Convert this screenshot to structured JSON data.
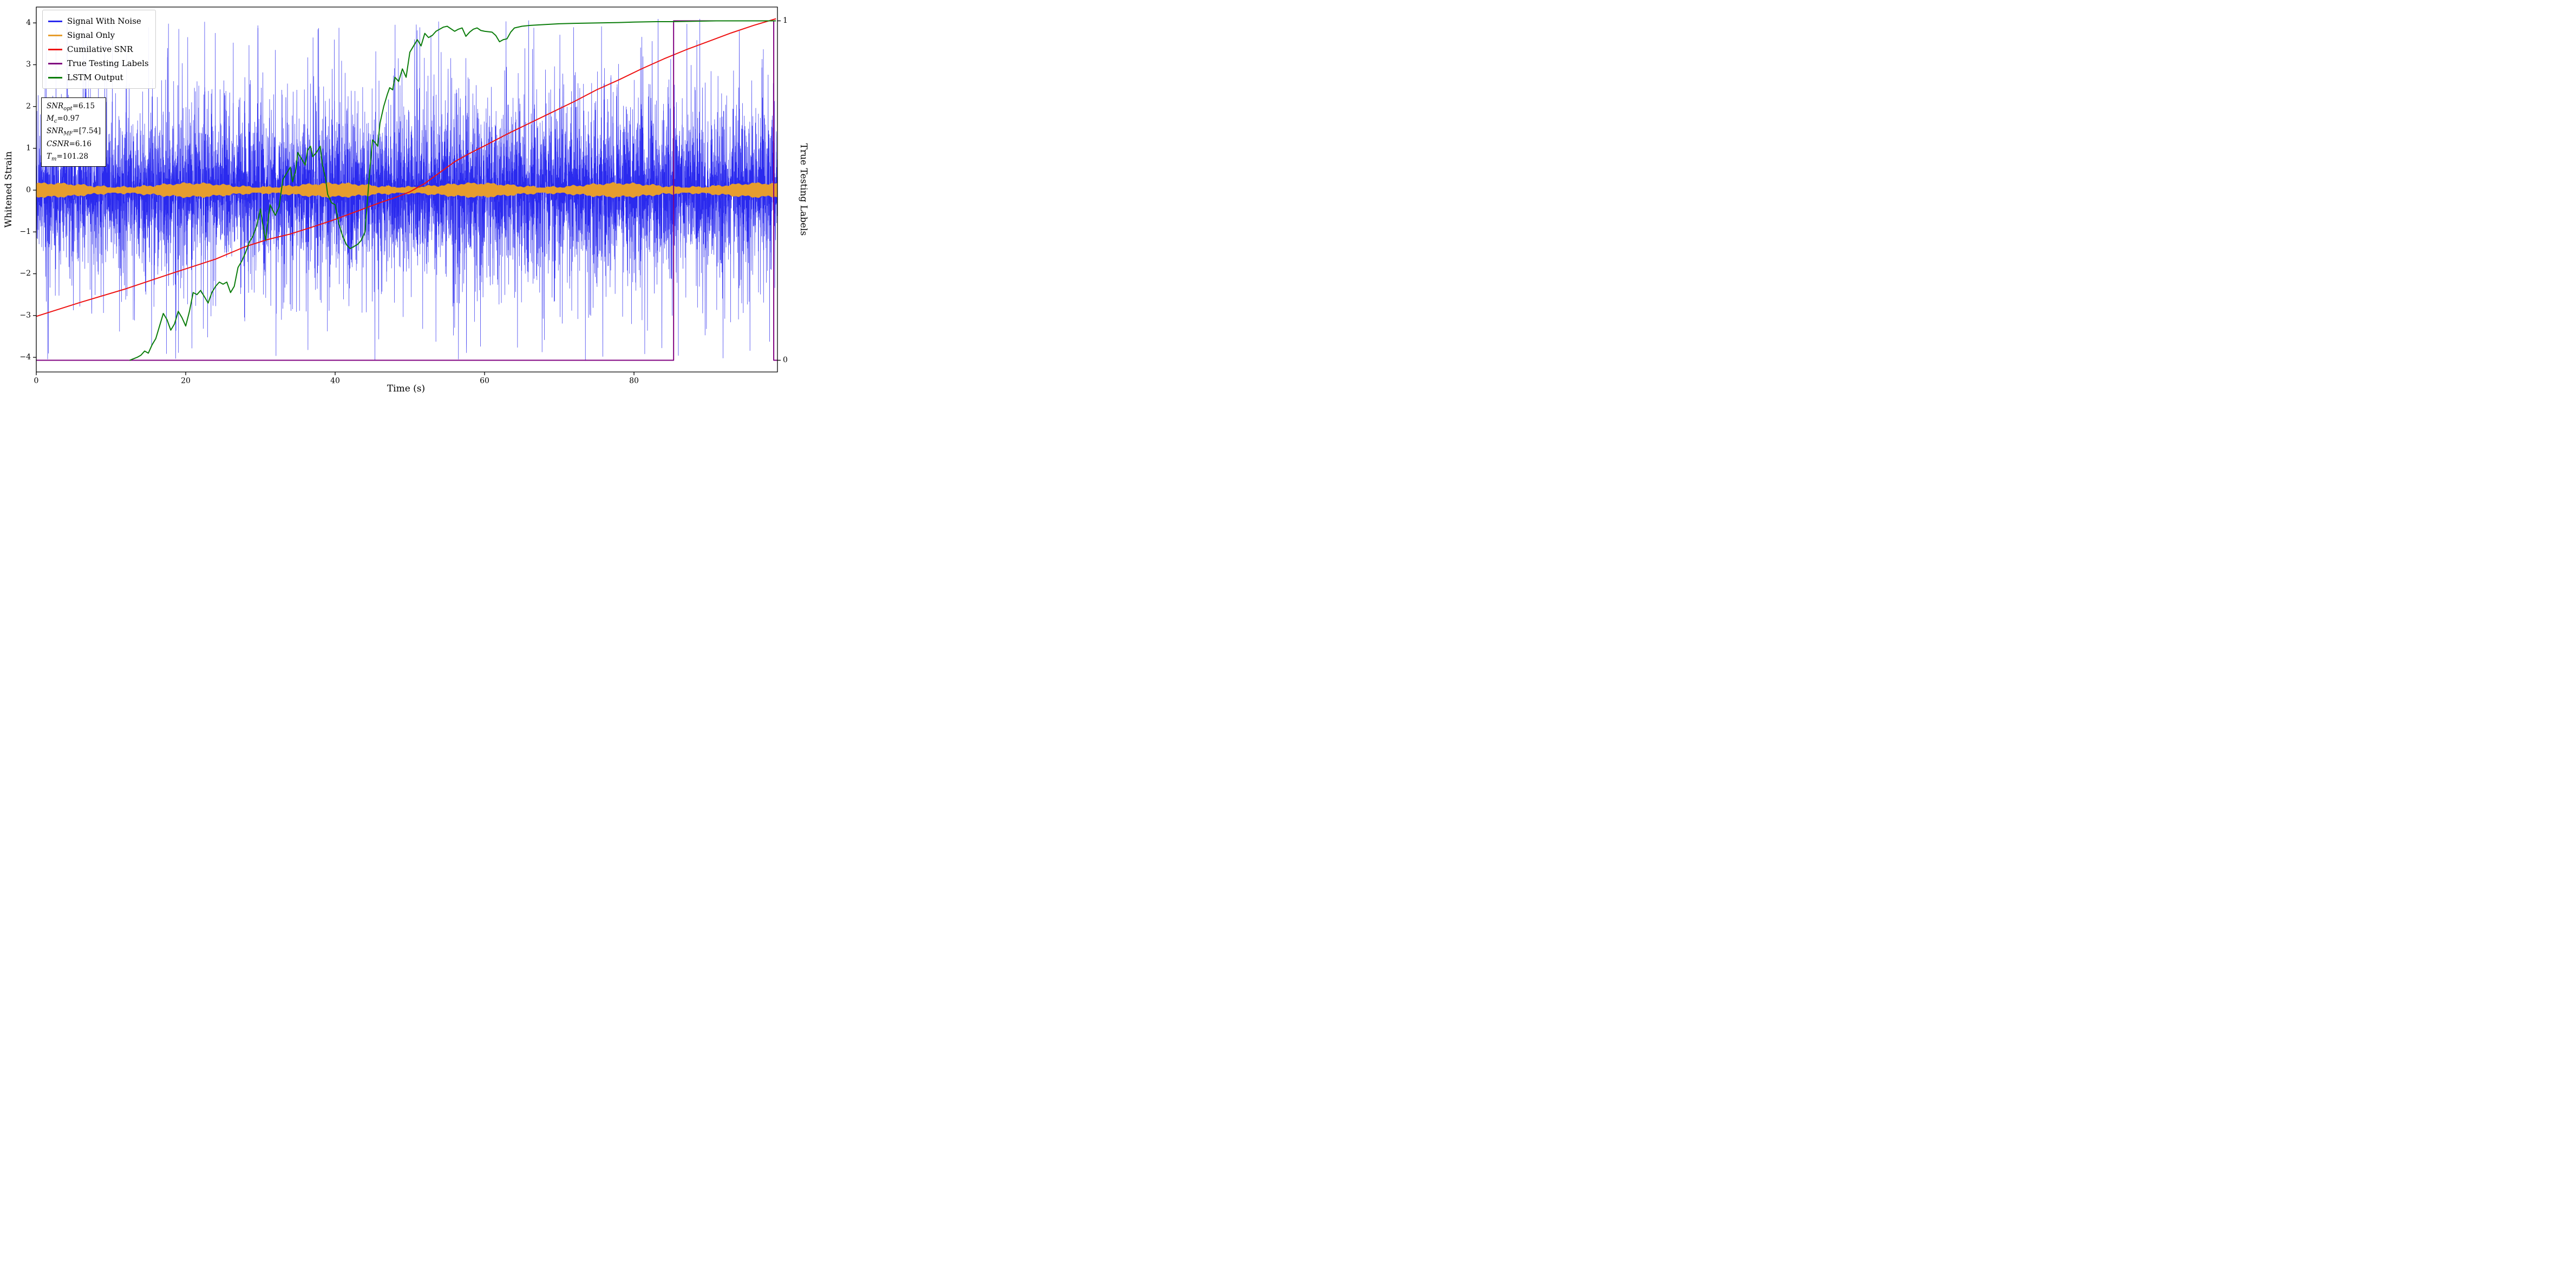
{
  "figure": {
    "background": "#ffffff",
    "xlabel": "Time (s)",
    "ylabel_left": "Whitened Strain",
    "ylabel_right": "True Testing Labels"
  },
  "legend": {
    "position": "upper left",
    "items": [
      {
        "label": "Signal With Noise",
        "color": "#2a2aee"
      },
      {
        "label": "Signal Only",
        "color": "#e69d2e"
      },
      {
        "label": "Cumilative SNR",
        "color": "#ee1111"
      },
      {
        "label": "True Testing Labels",
        "color": "#800080"
      },
      {
        "label": "LSTM Output",
        "color": "#0b7d0b"
      }
    ]
  },
  "annotation": {
    "lines": [
      {
        "main": "SNR",
        "sub": "opt",
        "rest": "=6.15"
      },
      {
        "main": "M",
        "sub": "c",
        "rest": "=0.97"
      },
      {
        "main": "SNR",
        "sub": "MF",
        "rest": "=[7.54]"
      },
      {
        "main": "CSNR",
        "sub": "",
        "rest": "=6.16"
      },
      {
        "main": "T",
        "sub": "m",
        "rest": "=101.28"
      }
    ]
  },
  "chart_data": {
    "type": "line",
    "title": "",
    "xlabel": "Time (s)",
    "ylabel": "Whitened Strain",
    "ylabel_right": "True Testing Labels",
    "xlim": [
      0,
      99.2
    ],
    "ylim": [
      -4.35,
      4.38
    ],
    "x_ticks": [
      0,
      20,
      40,
      60,
      80
    ],
    "y_ticks": [
      -4,
      -3,
      -2,
      -1,
      0,
      1,
      2,
      3,
      4
    ],
    "right_ticks": [
      {
        "y": -4.07,
        "label": "0"
      },
      {
        "y": 4.05,
        "label": "1"
      }
    ],
    "grid": false,
    "legend_position": "upper left",
    "series": [
      {
        "name": "Signal With Noise",
        "type": "noise",
        "color": "#2a2aee",
        "x_range": [
          0,
          99.2
        ],
        "n_points": 9000,
        "scale": 0.72,
        "clip": 4.12,
        "seed": 1337,
        "description": "whitened detector noise, dense band ±2 with spikes to ±4"
      },
      {
        "name": "Signal Only",
        "type": "band",
        "color": "#e69d2e",
        "x_range": [
          0,
          99.2
        ],
        "amplitude": 0.115,
        "wobble": 0.045,
        "description": "clean chirp signal, amplitude ≈ ±0.13 around zero"
      },
      {
        "name": "Cumilative SNR",
        "type": "line",
        "color": "#ee1111",
        "points": [
          [
            0,
            -3.02
          ],
          [
            6,
            -2.68
          ],
          [
            12,
            -2.36
          ],
          [
            18,
            -2.0
          ],
          [
            24,
            -1.65
          ],
          [
            28,
            -1.35
          ],
          [
            31,
            -1.18
          ],
          [
            34,
            -1.05
          ],
          [
            37,
            -0.88
          ],
          [
            40,
            -0.7
          ],
          [
            43,
            -0.5
          ],
          [
            46,
            -0.3
          ],
          [
            48,
            -0.18
          ],
          [
            50,
            -0.04
          ],
          [
            52,
            0.16
          ],
          [
            54,
            0.42
          ],
          [
            56,
            0.68
          ],
          [
            58,
            0.88
          ],
          [
            60,
            1.06
          ],
          [
            63,
            1.34
          ],
          [
            66,
            1.6
          ],
          [
            69,
            1.86
          ],
          [
            72,
            2.12
          ],
          [
            75,
            2.4
          ],
          [
            78,
            2.64
          ],
          [
            81,
            2.9
          ],
          [
            84,
            3.14
          ],
          [
            87,
            3.36
          ],
          [
            90,
            3.56
          ],
          [
            93,
            3.76
          ],
          [
            96,
            3.94
          ],
          [
            99,
            4.1
          ]
        ]
      },
      {
        "name": "True Testing Labels",
        "type": "line",
        "color": "#800080",
        "points": [
          [
            0,
            -4.07
          ],
          [
            85.3,
            -4.07
          ],
          [
            85.3,
            4.05
          ],
          [
            98.7,
            4.05
          ],
          [
            98.7,
            -4.07
          ],
          [
            99.2,
            -4.07
          ]
        ]
      },
      {
        "name": "LSTM Output",
        "type": "line",
        "color": "#0b7d0b",
        "points": [
          [
            12.5,
            -4.07
          ],
          [
            13.5,
            -4.0
          ],
          [
            14,
            -3.95
          ],
          [
            14.5,
            -3.85
          ],
          [
            15,
            -3.9
          ],
          [
            15.5,
            -3.7
          ],
          [
            16,
            -3.55
          ],
          [
            16.5,
            -3.25
          ],
          [
            17,
            -2.95
          ],
          [
            17.5,
            -3.1
          ],
          [
            18,
            -3.35
          ],
          [
            18.5,
            -3.2
          ],
          [
            19,
            -2.9
          ],
          [
            19.5,
            -3.05
          ],
          [
            20,
            -3.25
          ],
          [
            20.5,
            -2.9
          ],
          [
            21,
            -2.45
          ],
          [
            21.5,
            -2.5
          ],
          [
            22,
            -2.4
          ],
          [
            22.5,
            -2.55
          ],
          [
            23,
            -2.7
          ],
          [
            23.5,
            -2.45
          ],
          [
            24,
            -2.3
          ],
          [
            24.5,
            -2.2
          ],
          [
            25,
            -2.25
          ],
          [
            25.5,
            -2.2
          ],
          [
            26,
            -2.45
          ],
          [
            26.5,
            -2.3
          ],
          [
            27,
            -1.85
          ],
          [
            27.5,
            -1.7
          ],
          [
            28,
            -1.5
          ],
          [
            28.5,
            -1.25
          ],
          [
            29,
            -1.1
          ],
          [
            29.5,
            -0.85
          ],
          [
            30,
            -0.45
          ],
          [
            30.3,
            -0.8
          ],
          [
            30.7,
            -1.2
          ],
          [
            31,
            -0.75
          ],
          [
            31.3,
            -0.35
          ],
          [
            31.7,
            -0.5
          ],
          [
            32,
            -0.6
          ],
          [
            32.5,
            -0.4
          ],
          [
            33,
            0.25
          ],
          [
            33.5,
            0.4
          ],
          [
            34,
            0.55
          ],
          [
            34.3,
            0.2
          ],
          [
            34.7,
            0.45
          ],
          [
            35,
            0.9
          ],
          [
            35.5,
            0.75
          ],
          [
            36,
            0.6
          ],
          [
            36.3,
            0.95
          ],
          [
            36.7,
            1.05
          ],
          [
            37,
            0.8
          ],
          [
            37.5,
            0.9
          ],
          [
            38,
            1.05
          ],
          [
            38.3,
            0.6
          ],
          [
            38.7,
            0.3
          ],
          [
            39,
            -0.1
          ],
          [
            39.5,
            -0.3
          ],
          [
            40,
            -0.35
          ],
          [
            40.5,
            -0.8
          ],
          [
            41,
            -1.1
          ],
          [
            41.5,
            -1.3
          ],
          [
            42,
            -1.4
          ],
          [
            42.5,
            -1.35
          ],
          [
            43,
            -1.3
          ],
          [
            43.5,
            -1.2
          ],
          [
            44,
            -1.0
          ],
          [
            44.3,
            -0.3
          ],
          [
            44.6,
            0.4
          ],
          [
            45,
            1.2
          ],
          [
            45.3,
            1.15
          ],
          [
            45.7,
            1.05
          ],
          [
            46,
            1.6
          ],
          [
            46.5,
            2.0
          ],
          [
            47,
            2.3
          ],
          [
            47.3,
            2.45
          ],
          [
            47.7,
            2.4
          ],
          [
            48,
            2.7
          ],
          [
            48.5,
            2.6
          ],
          [
            49,
            2.9
          ],
          [
            49.5,
            2.7
          ],
          [
            50,
            3.3
          ],
          [
            50.5,
            3.45
          ],
          [
            51,
            3.6
          ],
          [
            51.5,
            3.45
          ],
          [
            52,
            3.75
          ],
          [
            52.5,
            3.65
          ],
          [
            53,
            3.7
          ],
          [
            53.5,
            3.8
          ],
          [
            54,
            3.85
          ],
          [
            54.5,
            3.9
          ],
          [
            55,
            3.92
          ],
          [
            56,
            3.8
          ],
          [
            56.5,
            3.85
          ],
          [
            57,
            3.88
          ],
          [
            57.5,
            3.68
          ],
          [
            58,
            3.78
          ],
          [
            58.5,
            3.85
          ],
          [
            59,
            3.88
          ],
          [
            59.5,
            3.82
          ],
          [
            60,
            3.8
          ],
          [
            61,
            3.78
          ],
          [
            61.5,
            3.7
          ],
          [
            62,
            3.55
          ],
          [
            62.5,
            3.6
          ],
          [
            63,
            3.62
          ],
          [
            63.5,
            3.78
          ],
          [
            64,
            3.88
          ],
          [
            65,
            3.92
          ],
          [
            66,
            3.94
          ],
          [
            68,
            3.96
          ],
          [
            70,
            3.98
          ],
          [
            72,
            3.99
          ],
          [
            75,
            4.0
          ],
          [
            78,
            4.01
          ],
          [
            80,
            4.02
          ],
          [
            83,
            4.03
          ],
          [
            85,
            4.03
          ],
          [
            88,
            4.04
          ],
          [
            91,
            4.05
          ],
          [
            94,
            4.05
          ],
          [
            97,
            4.05
          ],
          [
            99,
            4.05
          ]
        ]
      }
    ]
  }
}
